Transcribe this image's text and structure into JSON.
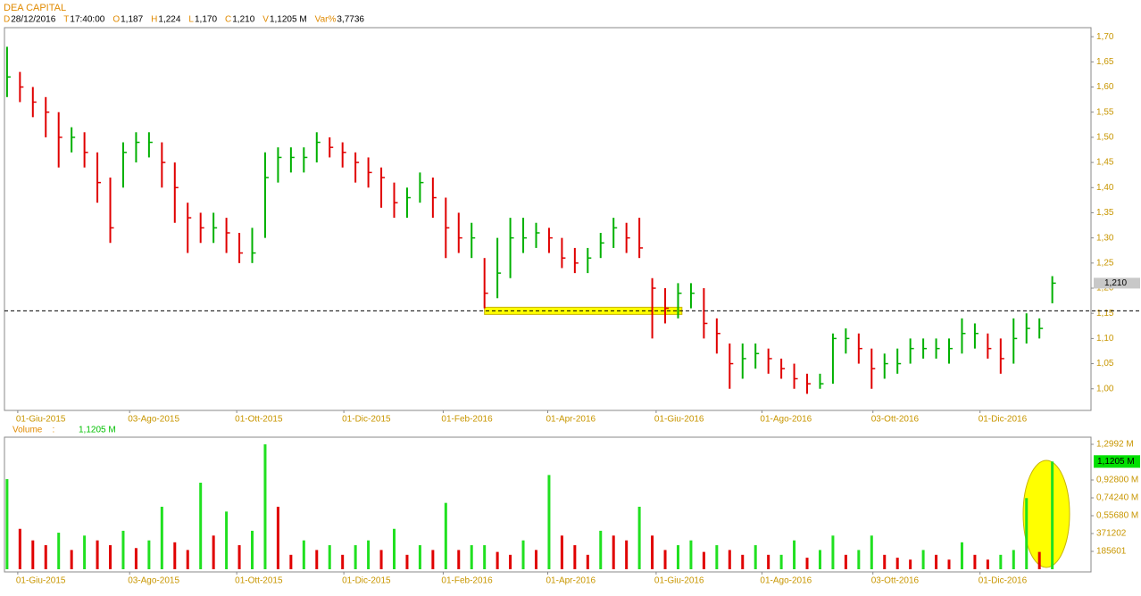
{
  "header": {
    "title": "DEA CAPITAL",
    "fields": [
      {
        "key": "D",
        "value": "28/12/2016"
      },
      {
        "key": "T",
        "value": "17:40:00"
      },
      {
        "key": "O",
        "value": "1,187"
      },
      {
        "key": "H",
        "value": "1,224"
      },
      {
        "key": "L",
        "value": "1,170"
      },
      {
        "key": "C",
        "value": "1,210"
      },
      {
        "key": "V",
        "value": "1,1205 M"
      },
      {
        "key": "Var%",
        "value": "3,7736"
      }
    ]
  },
  "chart_data": [
    {
      "type": "ohlc",
      "up_color": "#00b000",
      "down_color": "#e00000",
      "close": [
        1.62,
        1.6,
        1.57,
        1.55,
        1.5,
        1.5,
        1.47,
        1.41,
        1.32,
        1.47,
        1.49,
        1.49,
        1.45,
        1.4,
        1.34,
        1.32,
        1.32,
        1.31,
        1.27,
        1.27,
        1.42,
        1.46,
        1.46,
        1.46,
        1.49,
        1.48,
        1.47,
        1.45,
        1.43,
        1.42,
        1.37,
        1.38,
        1.41,
        1.38,
        1.32,
        1.3,
        1.3,
        1.19,
        1.23,
        1.3,
        1.3,
        1.31,
        1.3,
        1.26,
        1.25,
        1.26,
        1.29,
        1.32,
        1.3,
        1.28,
        1.2,
        1.16,
        1.19,
        1.19,
        1.13,
        1.11,
        1.05,
        1.06,
        1.07,
        1.06,
        1.04,
        1.02,
        1.01,
        1.01,
        1.1,
        1.1,
        1.08,
        1.04,
        1.05,
        1.05,
        1.08,
        1.08,
        1.08,
        1.08,
        1.11,
        1.11,
        1.08,
        1.06,
        1.1,
        1.12,
        1.12,
        1.21
      ],
      "high": [
        1.68,
        1.63,
        1.6,
        1.58,
        1.55,
        1.52,
        1.51,
        1.47,
        1.42,
        1.49,
        1.51,
        1.51,
        1.49,
        1.45,
        1.37,
        1.35,
        1.35,
        1.34,
        1.31,
        1.32,
        1.47,
        1.48,
        1.48,
        1.48,
        1.51,
        1.5,
        1.49,
        1.47,
        1.46,
        1.44,
        1.41,
        1.4,
        1.43,
        1.42,
        1.38,
        1.35,
        1.33,
        1.26,
        1.3,
        1.34,
        1.34,
        1.33,
        1.32,
        1.3,
        1.28,
        1.28,
        1.31,
        1.34,
        1.33,
        1.34,
        1.22,
        1.2,
        1.21,
        1.21,
        1.2,
        1.14,
        1.09,
        1.09,
        1.09,
        1.08,
        1.06,
        1.05,
        1.03,
        1.03,
        1.11,
        1.12,
        1.11,
        1.08,
        1.07,
        1.08,
        1.1,
        1.1,
        1.1,
        1.1,
        1.14,
        1.13,
        1.11,
        1.1,
        1.14,
        1.15,
        1.14,
        1.224
      ],
      "low": [
        1.58,
        1.57,
        1.54,
        1.5,
        1.44,
        1.47,
        1.44,
        1.37,
        1.29,
        1.4,
        1.45,
        1.46,
        1.4,
        1.33,
        1.27,
        1.29,
        1.29,
        1.27,
        1.25,
        1.25,
        1.3,
        1.41,
        1.43,
        1.43,
        1.45,
        1.46,
        1.44,
        1.41,
        1.4,
        1.36,
        1.34,
        1.34,
        1.37,
        1.34,
        1.26,
        1.27,
        1.26,
        1.16,
        1.18,
        1.22,
        1.27,
        1.28,
        1.27,
        1.24,
        1.23,
        1.23,
        1.26,
        1.28,
        1.27,
        1.26,
        1.1,
        1.13,
        1.14,
        1.16,
        1.1,
        1.07,
        1.0,
        1.02,
        1.04,
        1.03,
        1.02,
        1.0,
        0.99,
        1.0,
        1.01,
        1.07,
        1.05,
        1.0,
        1.02,
        1.03,
        1.05,
        1.06,
        1.06,
        1.05,
        1.07,
        1.08,
        1.06,
        1.03,
        1.05,
        1.09,
        1.1,
        1.17
      ],
      "xlim": [
        -0.2,
        84.0
      ],
      "xticks": [
        {
          "value": 0.83,
          "label": "01-Giu-2015"
        },
        {
          "value": 9.5,
          "label": "03-Ago-2015"
        },
        {
          "value": 17.8,
          "label": "01-Ott-2015"
        },
        {
          "value": 26.1,
          "label": "01-Dic-2015"
        },
        {
          "value": 33.8,
          "label": "01-Feb-2016"
        },
        {
          "value": 41.9,
          "label": "01-Apr-2016"
        },
        {
          "value": 50.3,
          "label": "01-Giu-2016"
        },
        {
          "value": 58.5,
          "label": "01-Ago-2016"
        },
        {
          "value": 67.1,
          "label": "03-Ott-2016"
        },
        {
          "value": 75.4,
          "label": "01-Dic-2016"
        }
      ],
      "ylim": [
        0.957,
        1.718
      ],
      "yticks": [
        {
          "value": 1.0,
          "label": "1,00"
        },
        {
          "value": 1.05,
          "label": "1,05"
        },
        {
          "value": 1.1,
          "label": "1,10"
        },
        {
          "value": 1.15,
          "label": "1,15"
        },
        {
          "value": 1.2,
          "label": "1,20"
        },
        {
          "value": 1.25,
          "label": "1,25"
        },
        {
          "value": 1.3,
          "label": "1,30"
        },
        {
          "value": 1.35,
          "label": "1,35"
        },
        {
          "value": 1.4,
          "label": "1,40"
        },
        {
          "value": 1.45,
          "label": "1,45"
        },
        {
          "value": 1.5,
          "label": "1,50"
        },
        {
          "value": 1.55,
          "label": "1,55"
        },
        {
          "value": 1.6,
          "label": "1,60"
        },
        {
          "value": 1.65,
          "label": "1,65"
        },
        {
          "value": 1.7,
          "label": "1,70"
        }
      ],
      "last": {
        "value": 1.21,
        "label": "1,210"
      },
      "level": 1.155,
      "highlight_x": [
        37,
        52.3
      ]
    },
    {
      "type": "bar",
      "name": "Volume    :",
      "values": [
        937000,
        420000,
        300000,
        250000,
        380000,
        200000,
        350000,
        300000,
        250000,
        400000,
        220000,
        300000,
        650000,
        280000,
        200000,
        900000,
        350000,
        600000,
        250000,
        400000,
        1299000,
        650000,
        150000,
        300000,
        200000,
        250000,
        150000,
        250000,
        300000,
        200000,
        420000,
        150000,
        250000,
        200000,
        690000,
        200000,
        250000,
        250000,
        180000,
        150000,
        300000,
        200000,
        980000,
        350000,
        250000,
        150000,
        400000,
        350000,
        300000,
        650000,
        350000,
        200000,
        250000,
        300000,
        180000,
        250000,
        200000,
        150000,
        250000,
        150000,
        150000,
        300000,
        120000,
        200000,
        350000,
        150000,
        200000,
        350000,
        150000,
        120000,
        100000,
        200000,
        150000,
        100000,
        280000,
        150000,
        100000,
        150000,
        200000,
        740000,
        180000,
        1120500
      ],
      "xlim": [
        -0.2,
        84.0
      ],
      "xticks": [
        {
          "value": 0.83,
          "label": "01-Giu-2015"
        },
        {
          "value": 9.5,
          "label": "03-Ago-2015"
        },
        {
          "value": 17.8,
          "label": "01-Ott-2015"
        },
        {
          "value": 26.1,
          "label": "01-Dic-2015"
        },
        {
          "value": 33.8,
          "label": "01-Feb-2016"
        },
        {
          "value": 41.9,
          "label": "01-Apr-2016"
        },
        {
          "value": 50.3,
          "label": "01-Giu-2016"
        },
        {
          "value": 58.5,
          "label": "01-Ago-2016"
        },
        {
          "value": 67.1,
          "label": "03-Ott-2016"
        },
        {
          "value": 75.4,
          "label": "01-Dic-2016"
        }
      ],
      "ylim": [
        0,
        1373447
      ],
      "yticks": [
        185601,
        371202,
        {
          "value": 556803,
          "label": "0,55680 M"
        },
        {
          "value": 742404,
          "label": "0,74240 M"
        },
        {
          "value": 928005,
          "label": "0,92800 M"
        },
        {
          "value": 1299207,
          "label": "1,2992 M"
        }
      ],
      "last": {
        "value": 1120500,
        "label": "1,1205 M"
      }
    }
  ]
}
